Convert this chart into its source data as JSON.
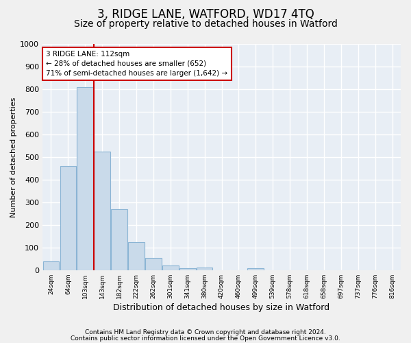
{
  "title1": "3, RIDGE LANE, WATFORD, WD17 4TQ",
  "title2": "Size of property relative to detached houses in Watford",
  "xlabel": "Distribution of detached houses by size in Watford",
  "ylabel": "Number of detached properties",
  "footnote1": "Contains HM Land Registry data © Crown copyright and database right 2024.",
  "footnote2": "Contains public sector information licensed under the Open Government Licence v3.0.",
  "categories": [
    "24sqm",
    "64sqm",
    "103sqm",
    "143sqm",
    "182sqm",
    "222sqm",
    "262sqm",
    "301sqm",
    "341sqm",
    "380sqm",
    "420sqm",
    "460sqm",
    "499sqm",
    "539sqm",
    "578sqm",
    "618sqm",
    "658sqm",
    "697sqm",
    "737sqm",
    "776sqm",
    "816sqm"
  ],
  "values": [
    40,
    460,
    810,
    525,
    270,
    125,
    55,
    22,
    10,
    12,
    0,
    0,
    10,
    0,
    0,
    0,
    0,
    0,
    0,
    0,
    0
  ],
  "bar_color": "#c9daea",
  "bar_edge_color": "#8ab4d4",
  "annotation_text1": "3 RIDGE LANE: 112sqm",
  "annotation_text2": "← 28% of detached houses are smaller (652)",
  "annotation_text3": "71% of semi-detached houses are larger (1,642) →",
  "annotation_box_facecolor": "white",
  "annotation_box_edgecolor": "#cc0000",
  "property_line_color": "#cc0000",
  "ylim": [
    0,
    1000
  ],
  "yticks": [
    0,
    100,
    200,
    300,
    400,
    500,
    600,
    700,
    800,
    900,
    1000
  ],
  "bg_color": "#e8eef5",
  "grid_color": "white",
  "fig_bg": "#f0f0f0",
  "title1_fontsize": 12,
  "title2_fontsize": 10,
  "footnote_fontsize": 6.5,
  "ylabel_fontsize": 8,
  "xlabel_fontsize": 9
}
